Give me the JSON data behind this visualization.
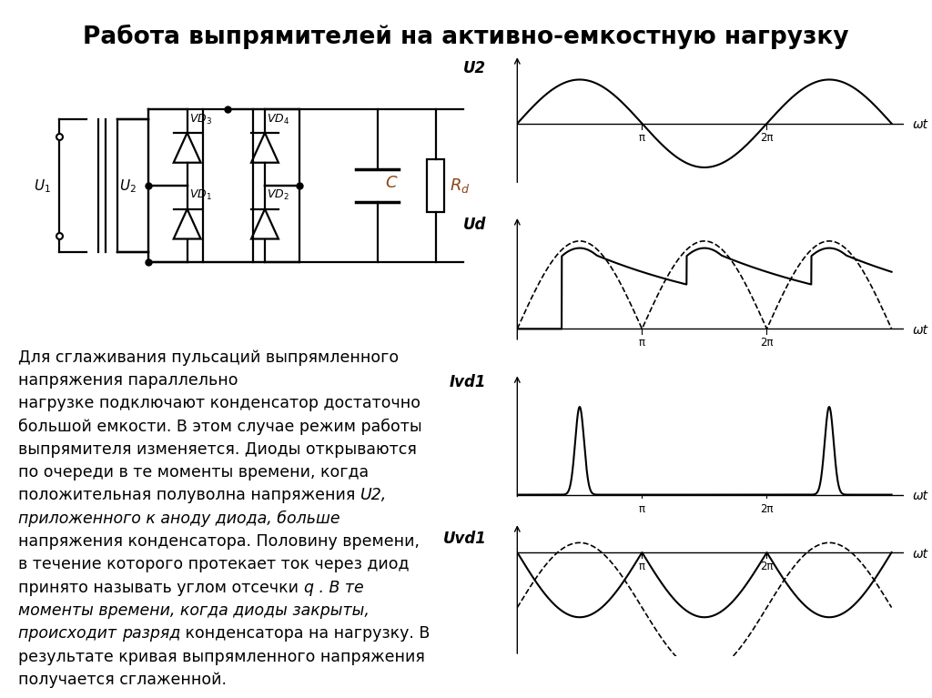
{
  "title": "Работа выпрямителей на активно-емкостную нагрузку",
  "title_fontsize": 19,
  "background_color": "#ffffff",
  "graph_labels": [
    "U2",
    "Ud",
    "Ivd1",
    "Uvd1"
  ],
  "omega_t": "ωt",
  "pi_label": "π",
  "two_pi_label": "2π",
  "line_configs": [
    [
      [
        "Для сглаживания пульсаций выпрямленного",
        false
      ]
    ],
    [
      [
        "напряжения параллельно",
        false
      ]
    ],
    [
      [
        "нагрузке подключают конденсатор достаточно",
        false
      ]
    ],
    [
      [
        "большой емкости. В этом случае режим работы",
        false
      ]
    ],
    [
      [
        "выпрямителя изменяется. Диоды открываются",
        false
      ]
    ],
    [
      [
        "по очереди в те моменты времени, когда",
        false
      ]
    ],
    [
      [
        "положительная полуволна напряжения ",
        false
      ],
      [
        "U2,",
        true
      ]
    ],
    [
      [
        "приложенного к аноду диода, больше",
        true
      ]
    ],
    [
      [
        "напряжения конденсатора. Половину времени,",
        false
      ]
    ],
    [
      [
        "в течение которого протекает ток через диод",
        false
      ]
    ],
    [
      [
        "принято называть углом отсечки ",
        false
      ],
      [
        "q . В те",
        true
      ]
    ],
    [
      [
        "моменты времени, когда диоды закрыты,",
        true
      ]
    ],
    [
      [
        "происходит ",
        true
      ],
      [
        "разряд",
        true
      ],
      [
        " конденсатора на нагрузку. В",
        false
      ]
    ],
    [
      [
        "результате кривая выпрямленного напряжения",
        false
      ]
    ],
    [
      [
        "получается сглаженной.",
        false
      ]
    ]
  ]
}
